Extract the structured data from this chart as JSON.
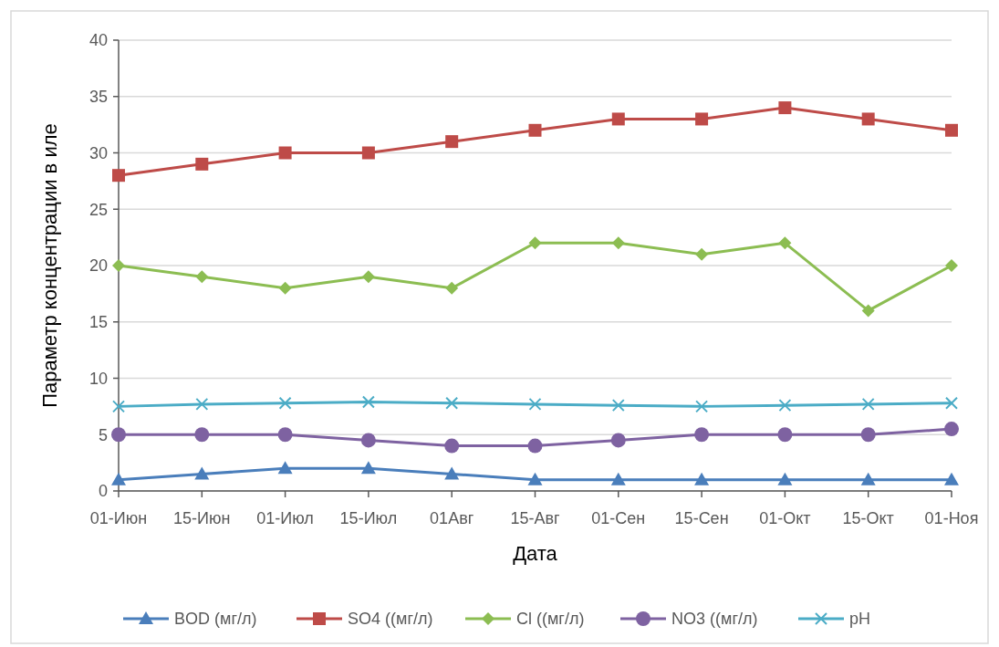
{
  "chart_data": {
    "type": "line",
    "xlabel": "Дата",
    "ylabel": "Параметр концентрации в иле",
    "categories": [
      "01-Июн",
      "15-Июн",
      "01-Июл",
      "15-Июл",
      "01Авг",
      "15-Авг",
      "01-Сен",
      "15-Сен",
      "01-Окт",
      "15-Окт",
      "01-Ноя"
    ],
    "series": [
      {
        "name": "BOD (мг/л)",
        "color": "#4a7ebb",
        "marker": "triangle",
        "values": [
          1,
          1.5,
          2,
          2,
          1.5,
          1,
          1,
          1,
          1,
          1,
          1
        ]
      },
      {
        "name": "SO4 ((мг/л)",
        "color": "#be4b48",
        "marker": "square",
        "values": [
          28,
          29,
          30,
          30,
          31,
          32,
          33,
          33,
          34,
          33,
          32
        ]
      },
      {
        "name": "Cl ((мг/л)",
        "color": "#8cbd52",
        "marker": "diamond",
        "values": [
          20,
          19,
          18,
          19,
          18,
          22,
          22,
          21,
          22,
          16,
          20
        ]
      },
      {
        "name": "NO3 ((мг/л)",
        "color": "#7e62a1",
        "marker": "circle",
        "values": [
          5,
          5,
          5,
          4.5,
          4,
          4,
          4.5,
          5,
          5,
          5,
          5.5
        ]
      },
      {
        "name": "pH",
        "color": "#4bacc6",
        "marker": "cross",
        "values": [
          7.5,
          7.7,
          7.8,
          7.9,
          7.8,
          7.7,
          7.6,
          7.5,
          7.6,
          7.7,
          7.8
        ]
      }
    ],
    "ylim": [
      0,
      40
    ],
    "yticks": [
      0,
      5,
      10,
      15,
      20,
      25,
      30,
      35,
      40
    ],
    "grid": "y",
    "legend": "bottom"
  }
}
